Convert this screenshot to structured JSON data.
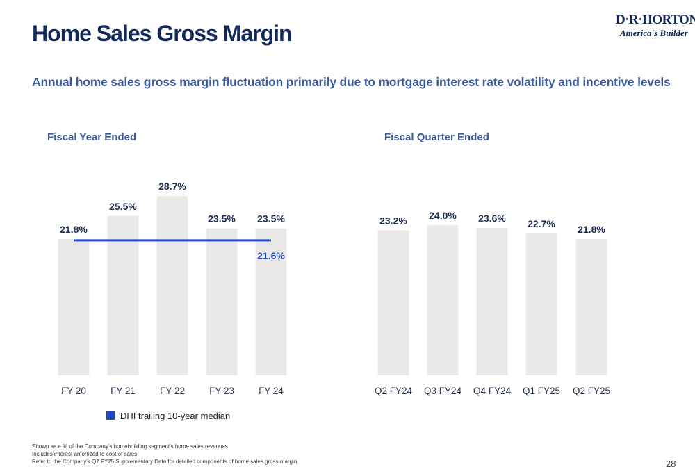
{
  "title": "Home Sales Gross Margin",
  "subtitle": "Annual home sales gross margin fluctuation primarily due to mortgage interest rate volatility and incentive levels",
  "logo": {
    "line1": "D·R·HORTON",
    "line2": "America's Builder"
  },
  "colors": {
    "bar": "#ebe9e7",
    "median": "#1f49b8",
    "title": "#12285a",
    "subtitle": "#3a5a9c"
  },
  "chart_data": [
    {
      "type": "bar",
      "title": "Fiscal Year Ended",
      "categories": [
        "FY 20",
        "FY 21",
        "FY 22",
        "FY 23",
        "FY 24"
      ],
      "values": [
        21.8,
        25.5,
        28.7,
        23.5,
        23.5
      ],
      "value_labels": [
        "21.8%",
        "25.5%",
        "28.7%",
        "23.5%",
        "23.5%"
      ],
      "overlay_line": {
        "name": "DHI trailing 10-year median",
        "value": 21.6,
        "label": "21.6%"
      },
      "ylim": [
        0,
        30
      ],
      "legend": "bottom-left"
    },
    {
      "type": "bar",
      "title": "Fiscal Quarter Ended",
      "categories": [
        "Q2 FY24",
        "Q3 FY24",
        "Q4 FY24",
        "Q1 FY25",
        "Q2 FY25"
      ],
      "values": [
        23.2,
        24.0,
        23.6,
        22.7,
        21.8
      ],
      "value_labels": [
        "23.2%",
        "24.0%",
        "23.6%",
        "22.7%",
        "21.8%"
      ],
      "ylim": [
        0,
        30
      ]
    }
  ],
  "legend_label": "DHI trailing 10-year median",
  "footnotes": [
    "Shown as a % of the Company's homebuilding segment's home sales revenues",
    "Includes interest amortized to cost of sales",
    "Refer to the Company's Q2 FY25 Supplementary Data for detailed components of home sales gross margin"
  ],
  "page_number": "28"
}
